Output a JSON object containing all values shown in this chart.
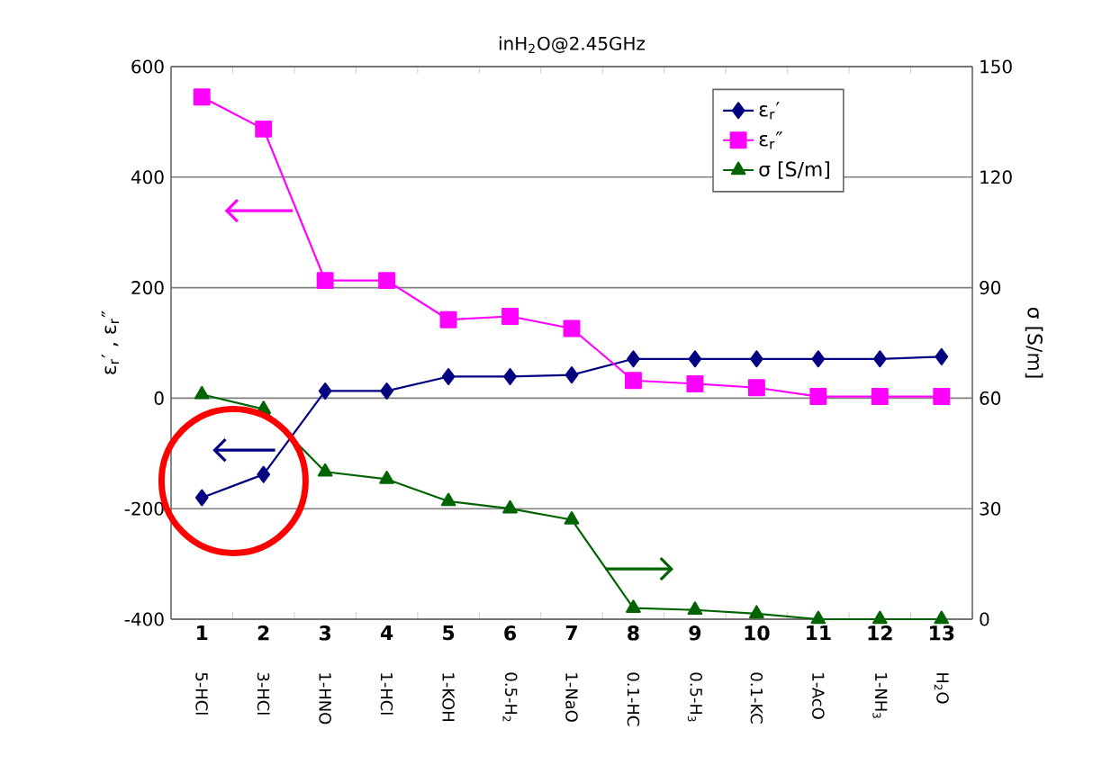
{
  "chart_data": {
    "type": "line",
    "title": "inH$_{2}$O@2.45GHz",
    "categories": [
      "1",
      "2",
      "3",
      "4",
      "5",
      "6",
      "7",
      "8",
      "9",
      "10",
      "11",
      "12",
      "13"
    ],
    "ylabel": "ε$_{r}$′ , ε$_{r}$″",
    "y2label": "σ [S/m]",
    "ylim": [
      -400,
      600
    ],
    "yticks": [
      -400,
      -200,
      0,
      200,
      400,
      600
    ],
    "y2lim": [
      0,
      150
    ],
    "y2ticks": [
      0,
      30,
      60,
      90,
      120,
      150
    ],
    "grid": "y",
    "legend": "top right",
    "series": [
      {
        "name": "ε$_{r}$′",
        "color": "#000080",
        "marker": "diamond",
        "values": [
          -180,
          -138,
          13,
          13,
          39,
          39,
          42,
          71,
          71,
          71,
          71,
          71,
          75
        ]
      },
      {
        "name": "ε$_{r}$″",
        "color": "#ff00ff",
        "marker": "square",
        "values": [
          545,
          487,
          213,
          213,
          142,
          148,
          126,
          32,
          26,
          19,
          3,
          3,
          3
        ]
      },
      {
        "name": "σ [S/m]",
        "color": "#006400",
        "marker": "triangle",
        "axis": "y2",
        "values": [
          61,
          57,
          40,
          38,
          32,
          30,
          27,
          3,
          2.5,
          1.5,
          0,
          0,
          0
        ]
      }
    ],
    "annotations": [
      "5-HCl",
      "3-HCl",
      "1-HNO",
      "1-HCl",
      "1-KOH",
      "0.5-H$_{2}$",
      "1-NaO",
      "0.1-HC",
      "0.5-H$_{3}$",
      "0.1-KC",
      "1-AcO",
      "1-NH$_{3}$",
      "H$_{2}$O"
    ]
  }
}
